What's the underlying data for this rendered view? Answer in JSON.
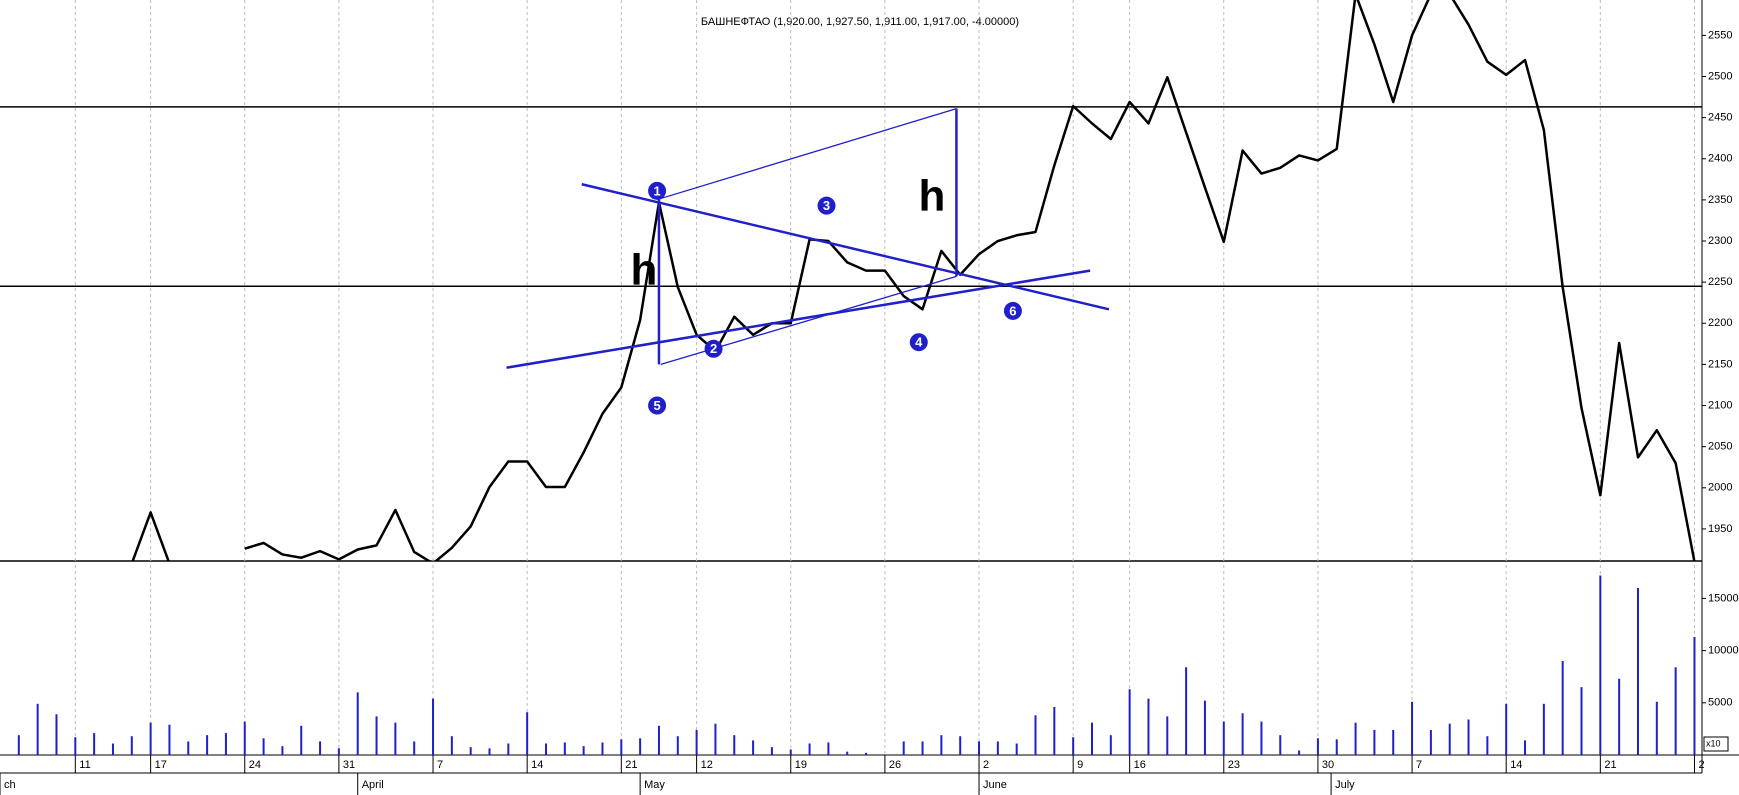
{
  "chart_data": [
    {
      "type": "line",
      "title": "БАШНЕФТАО (1,920.00, 1,927.50, 1,911.00, 1,917.00, -4.00000)",
      "x": [
        1,
        2,
        3,
        4,
        5,
        6,
        7,
        8,
        9,
        10,
        11,
        12,
        13,
        14,
        15,
        16,
        17,
        18,
        19,
        20,
        21,
        22,
        23,
        24,
        25,
        26,
        27,
        28,
        29,
        30,
        31,
        32,
        33,
        34,
        35,
        36,
        37,
        38,
        39,
        40,
        41,
        42,
        43,
        44,
        45,
        46,
        47,
        48,
        49,
        50,
        51,
        52,
        53,
        54,
        55,
        56,
        57,
        58,
        59,
        60,
        61,
        62,
        63,
        64,
        65,
        66,
        67,
        68,
        69,
        70,
        71,
        72,
        73,
        74,
        75,
        76,
        77,
        78,
        79,
        80,
        81,
        82,
        83,
        84,
        85,
        86,
        87,
        88,
        89,
        90
      ],
      "series": [
        {
          "color": "#000000",
          "values": [
            null,
            null,
            null,
            null,
            null,
            null,
            1908,
            1970,
            1908,
            null,
            null,
            null,
            1926,
            1933,
            1919,
            1915,
            1923,
            1913,
            1925,
            1930,
            1973,
            1922,
            1908,
            1927,
            1953,
            2001,
            2032,
            2032,
            2001,
            2001,
            2043,
            2090,
            2122,
            2204,
            2347,
            2244,
            2186,
            2166,
            2208,
            2186,
            2200,
            2200,
            2302,
            2300,
            2274,
            2264,
            2264,
            2233,
            2217,
            2288,
            2259,
            2284,
            2300,
            2307,
            2311,
            2392,
            2464,
            2443,
            2424,
            2469,
            2443,
            2499,
            2432,
            2365,
            2299,
            2410,
            2382,
            2389,
            2404,
            2398,
            2412,
            2600,
            2539,
            2469,
            2550,
            2600,
            2600,
            2563,
            2518,
            2502,
            2520,
            2435,
            2244,
            2097,
            1991,
            2176,
            2037,
            2070,
            2030,
            1910
          ]
        }
      ],
      "xlim": [
        0,
        90.4
      ],
      "ylim": [
        1911,
        2593
      ],
      "yticks": [
        1950,
        2000,
        2050,
        2100,
        2150,
        2200,
        2250,
        2300,
        2350,
        2400,
        2450,
        2500,
        2550
      ],
      "hlines": [
        2463,
        2245
      ],
      "line_color": "#1f1fcc",
      "trendlines": [
        {
          "x": [
            30.9,
            58.9
          ],
          "y": [
            2369,
            2217
          ]
        },
        {
          "x": [
            26.9,
            57.9
          ],
          "y": [
            2146,
            2264
          ]
        },
        {
          "x": [
            35,
            35
          ],
          "y": [
            2351,
            2150
          ]
        },
        {
          "x": [
            50.8,
            50.8
          ],
          "y": [
            2461,
            2257
          ]
        }
      ],
      "projection_lines": [
        {
          "x": [
            35,
            50.8
          ],
          "y": [
            2351,
            2461
          ]
        },
        {
          "x": [
            35.1,
            50.8
          ],
          "y": [
            2150,
            2257
          ]
        }
      ],
      "points": [
        {
          "label": "1",
          "x": 34.9,
          "y": 2361
        },
        {
          "label": "2",
          "x": 37.9,
          "y": 2169
        },
        {
          "label": "3",
          "x": 43.9,
          "y": 2343
        },
        {
          "label": "4",
          "x": 48.8,
          "y": 2177
        },
        {
          "label": "5",
          "x": 34.9,
          "y": 2100
        },
        {
          "label": "6",
          "x": 53.8,
          "y": 2215
        }
      ],
      "h_labels": [
        {
          "label": "h",
          "x": 34.2,
          "y": 2261
        },
        {
          "label": "h",
          "x": 49.5,
          "y": 2351
        }
      ]
    },
    {
      "type": "bar",
      "x": [
        1,
        2,
        3,
        4,
        5,
        6,
        7,
        8,
        9,
        10,
        11,
        12,
        13,
        14,
        15,
        16,
        17,
        18,
        19,
        20,
        21,
        22,
        23,
        24,
        25,
        26,
        27,
        28,
        29,
        30,
        31,
        32,
        33,
        34,
        35,
        36,
        37,
        38,
        39,
        40,
        41,
        42,
        43,
        44,
        45,
        46,
        47,
        48,
        49,
        50,
        51,
        52,
        53,
        54,
        55,
        56,
        57,
        58,
        59,
        60,
        61,
        62,
        63,
        64,
        65,
        66,
        67,
        68,
        69,
        70,
        71,
        72,
        73,
        74,
        75,
        76,
        77,
        78,
        79,
        80,
        81,
        82,
        83,
        84,
        85,
        86,
        87,
        88,
        89,
        90
      ],
      "values": [
        1900,
        4900,
        3900,
        1700,
        2100,
        1100,
        1800,
        3100,
        2900,
        1300,
        1900,
        2100,
        3200,
        1600,
        850,
        2800,
        1300,
        640,
        6000,
        3700,
        3100,
        1300,
        5400,
        1800,
        750,
        640,
        1100,
        4100,
        1100,
        1200,
        850,
        1200,
        1500,
        1600,
        2800,
        1800,
        2400,
        3000,
        1900,
        1400,
        750,
        530,
        1100,
        1200,
        320,
        210,
        0,
        1300,
        1300,
        1900,
        1800,
        1300,
        1300,
        1100,
        3800,
        4600,
        1700,
        3100,
        1900,
        6300,
        5400,
        3700,
        8400,
        5200,
        3200,
        4000,
        3200,
        1900,
        430,
        1600,
        1500,
        3100,
        2400,
        2400,
        5100,
        2400,
        3000,
        3400,
        1800,
        4900,
        1400,
        4900,
        9000,
        6500,
        17200,
        7300,
        16000,
        5100,
        8400,
        11300
      ],
      "color": "#1f1fcc",
      "xlim": [
        0,
        90.4
      ],
      "ylim": [
        0,
        18200
      ],
      "yticks": [
        5000,
        10000,
        15000
      ],
      "y_unit_label": "x10",
      "xticks": [
        {
          "value": 4,
          "label": "11"
        },
        {
          "value": 8,
          "label": "17"
        },
        {
          "value": 13,
          "label": "24"
        },
        {
          "value": 18,
          "label": "31"
        },
        {
          "value": 23,
          "label": "7"
        },
        {
          "value": 28,
          "label": "14"
        },
        {
          "value": 33,
          "label": "21"
        },
        {
          "value": 37,
          "label": "12"
        },
        {
          "value": 42,
          "label": "19"
        },
        {
          "value": 47,
          "label": "26"
        },
        {
          "value": 52,
          "label": "2"
        },
        {
          "value": 57,
          "label": "9"
        },
        {
          "value": 60,
          "label": "16"
        },
        {
          "value": 65,
          "label": "23"
        },
        {
          "value": 70,
          "label": "30"
        },
        {
          "value": 75,
          "label": "7"
        },
        {
          "value": 80,
          "label": "14"
        },
        {
          "value": 85,
          "label": "21"
        },
        {
          "value": 90,
          "label": "2"
        }
      ],
      "month_ticks": [
        {
          "value": 0,
          "label": "ch"
        },
        {
          "value": 19,
          "label": "April"
        },
        {
          "value": 34,
          "label": "May"
        },
        {
          "value": 52,
          "label": "June"
        },
        {
          "value": 70.7,
          "label": "July"
        }
      ]
    }
  ]
}
